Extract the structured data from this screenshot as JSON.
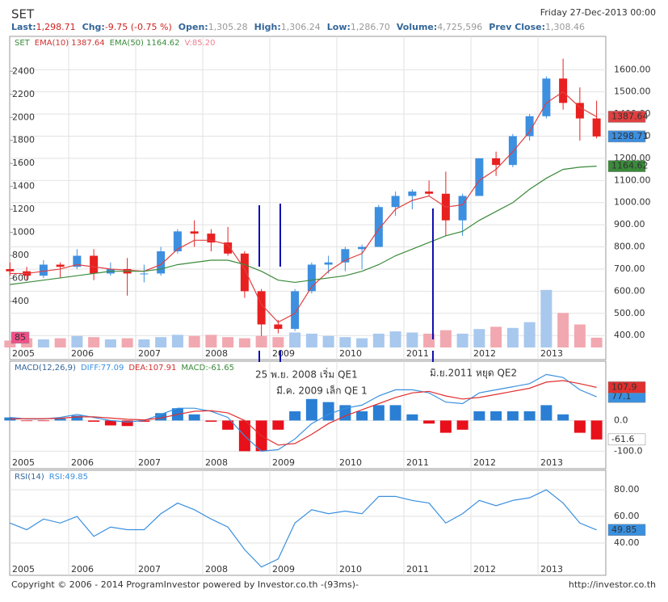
{
  "header": {
    "symbol": "SET",
    "date": "Friday 27-Dec-2013 00:00",
    "quote": [
      {
        "label": "Last:",
        "value": "1,298.71",
        "color": "#d02020"
      },
      {
        "label": "Chg:",
        "value": "-9.75 (-0.75 %)",
        "color": "#d02020"
      },
      {
        "label": "Open:",
        "value": "1,305.28",
        "color": "#999999"
      },
      {
        "label": "High:",
        "value": "1,306.24",
        "color": "#999999"
      },
      {
        "label": "Low:",
        "value": "1,286.70",
        "color": "#999999"
      },
      {
        "label": "Volume:",
        "value": "4,725,596",
        "color": "#999999"
      },
      {
        "label": "Prev Close:",
        "value": "1,308.46",
        "color": "#999999"
      }
    ]
  },
  "footer": {
    "left": "Copyright © 2006 - 2014 ProgramInvestor powered by Investor.co.th -(93ms)-",
    "right": "http://investor.co.th"
  },
  "chart_data": [
    {
      "type": "candlestick",
      "legend": [
        {
          "text": "SET",
          "color": "#3a8a3a"
        },
        {
          "text": "EMA(10) 1387.64",
          "color": "#d03030"
        },
        {
          "text": "EMA(50) 1164.62",
          "color": "#3a8a3a"
        },
        {
          "text": "V:85.20",
          "color": "#f08090"
        }
      ],
      "annotations": [
        "25 พ.ย. 2008 เริ่ม QE1",
        "มี.ค. 2009 เล็ก QE 1",
        "มิ.ย.2011 หยุด QE2"
      ],
      "categories": [
        "2005",
        null,
        null,
        null,
        "2006",
        null,
        null,
        null,
        "2007",
        null,
        null,
        null,
        "2008",
        null,
        null,
        null,
        "2009",
        null,
        null,
        null,
        "2010",
        null,
        null,
        null,
        "2011",
        null,
        null,
        null,
        "2012",
        null,
        null,
        null,
        "2013",
        null,
        null,
        null
      ],
      "open": [
        700,
        690,
        670,
        720,
        710,
        760,
        680,
        700,
        680,
        680,
        780,
        870,
        860,
        820,
        770,
        600,
        450,
        430,
        600,
        720,
        730,
        790,
        800,
        980,
        1030,
        1050,
        1040,
        920,
        1030,
        1200,
        1170,
        1300,
        1390,
        1560,
        1450,
        1380
      ],
      "high": [
        730,
        710,
        740,
        730,
        790,
        790,
        730,
        750,
        720,
        800,
        880,
        920,
        880,
        890,
        780,
        610,
        470,
        610,
        730,
        760,
        800,
        810,
        990,
        1050,
        1060,
        1100,
        1140,
        1040,
        1200,
        1230,
        1310,
        1400,
        1570,
        1650,
        1520,
        1460
      ],
      "low": [
        670,
        650,
        660,
        660,
        700,
        650,
        670,
        580,
        640,
        670,
        770,
        800,
        780,
        760,
        570,
        380,
        410,
        420,
        590,
        680,
        690,
        700,
        800,
        940,
        970,
        1030,
        850,
        850,
        1030,
        1120,
        1160,
        1280,
        1380,
        1420,
        1280,
        1290
      ],
      "close": [
        690,
        670,
        720,
        710,
        760,
        680,
        700,
        680,
        680,
        780,
        870,
        860,
        820,
        770,
        600,
        450,
        430,
        600,
        720,
        730,
        790,
        800,
        980,
        1030,
        1050,
        1040,
        920,
        1030,
        1200,
        1170,
        1300,
        1390,
        1560,
        1450,
        1380,
        1298.71
      ],
      "up_color": "#3d8fe0",
      "down_color": "#e82020",
      "close_box": "#3d8fe0",
      "series": [
        {
          "type": "bar",
          "axis": "y2",
          "up_color": "#a8c8ee",
          "down_color": "#f2a8b0",
          "color": "#f0508a",
          "last_box": true,
          "values": [
            60,
            80,
            70,
            80,
            100,
            90,
            70,
            80,
            70,
            90,
            110,
            100,
            110,
            90,
            80,
            100,
            90,
            130,
            120,
            100,
            90,
            80,
            120,
            140,
            130,
            120,
            150,
            120,
            160,
            180,
            170,
            220,
            500,
            300,
            200,
            85.2
          ],
          "value_labels": [
            null,
            null,
            null,
            null,
            null,
            null,
            null,
            null,
            null,
            null,
            null,
            null,
            null,
            null,
            null,
            null,
            null,
            null,
            null,
            null,
            null,
            null,
            null,
            null,
            null,
            null,
            null,
            null,
            null,
            null,
            null,
            null,
            null,
            null,
            null,
            "85"
          ]
        },
        {
          "type": "line",
          "color": "#e04040",
          "last_box": true,
          "values": [
            680,
            680,
            690,
            700,
            720,
            710,
            700,
            695,
            690,
            720,
            790,
            830,
            830,
            810,
            700,
            540,
            460,
            500,
            620,
            690,
            740,
            770,
            880,
            970,
            1010,
            1030,
            980,
            990,
            1100,
            1150,
            1230,
            1320,
            1450,
            1500,
            1430,
            1387.64
          ]
        },
        {
          "type": "line",
          "color": "#3a8a3a",
          "last_box": true,
          "values": [
            630,
            640,
            650,
            660,
            670,
            680,
            690,
            690,
            690,
            700,
            720,
            730,
            740,
            740,
            720,
            690,
            650,
            640,
            650,
            660,
            670,
            690,
            720,
            760,
            790,
            820,
            850,
            870,
            920,
            960,
            1000,
            1060,
            1110,
            1150,
            1160,
            1164.62
          ]
        }
      ],
      "ylim": [
        346,
        1725
      ],
      "yticks": [
        {
          "value": 400,
          "label": "400.00"
        },
        {
          "value": 500,
          "label": "500.00"
        },
        {
          "value": 600,
          "label": "600.00"
        },
        {
          "value": 700,
          "label": "700.00"
        },
        {
          "value": 800,
          "label": "800.00"
        },
        {
          "value": 900,
          "label": "900.00"
        },
        {
          "value": 1000,
          "label": "1000.00"
        },
        {
          "value": 1100,
          "label": "1100.00"
        },
        {
          "value": 1200,
          "label": "1200.00"
        },
        {
          "value": 1300,
          "label": "1300.00"
        },
        {
          "value": 1400,
          "label": "1400.00"
        },
        {
          "value": 1500,
          "label": "1500.00"
        },
        {
          "value": 1600,
          "label": "1600.00"
        }
      ],
      "y2lim": [
        0,
        2655
      ],
      "y2ticks": [
        400,
        600,
        800,
        1000,
        1200,
        1400,
        1600,
        1800,
        2000,
        2200,
        2400
      ],
      "grid": true
    },
    {
      "type": "line",
      "legend": [
        {
          "text": "MACD(12,26,9)",
          "color": "#336699"
        },
        {
          "text": "DIFF:77.09",
          "color": "#3a90e0"
        },
        {
          "text": "DEA:107.91",
          "color": "#d03030"
        },
        {
          "text": "MACD:-61.65",
          "color": "#3a8a3a"
        }
      ],
      "categories": [
        "2005",
        null,
        null,
        null,
        "2006",
        null,
        null,
        null,
        "2007",
        null,
        null,
        null,
        "2008",
        null,
        null,
        null,
        "2009",
        null,
        null,
        null,
        "2010",
        null,
        null,
        null,
        "2011",
        null,
        null,
        null,
        "2012",
        null,
        null,
        null,
        "2013",
        null,
        null,
        null
      ],
      "series": [
        {
          "type": "bar",
          "pos_color": "#2a7fd4",
          "neg_color": "#e8101a",
          "color": "#ffffff",
          "text_color": "#000000",
          "last_box": true,
          "values": [
            10,
            -2,
            -2,
            6,
            16,
            -4,
            -16,
            -18,
            -4,
            24,
            40,
            20,
            -4,
            -30,
            -100,
            -100,
            -30,
            30,
            70,
            60,
            50,
            30,
            50,
            50,
            20,
            -10,
            -40,
            -30,
            30,
            30,
            30,
            30,
            50,
            20,
            -40,
            -61.65
          ],
          "value_labels": [
            null,
            null,
            null,
            null,
            null,
            null,
            null,
            null,
            null,
            null,
            null,
            null,
            null,
            null,
            null,
            null,
            null,
            null,
            null,
            null,
            null,
            null,
            null,
            null,
            null,
            null,
            null,
            null,
            null,
            null,
            null,
            null,
            null,
            null,
            null,
            "-61.6"
          ]
        },
        {
          "type": "line",
          "color": "#3a90e0",
          "last_box": true,
          "values": [
            10,
            5,
            5,
            10,
            20,
            10,
            0,
            -5,
            0,
            20,
            40,
            40,
            30,
            10,
            -50,
            -100,
            -95,
            -60,
            -10,
            20,
            40,
            50,
            80,
            100,
            100,
            90,
            60,
            55,
            90,
            100,
            110,
            120,
            150,
            140,
            100,
            77.09
          ],
          "value_labels": [
            null,
            null,
            null,
            null,
            null,
            null,
            null,
            null,
            null,
            null,
            null,
            null,
            null,
            null,
            null,
            null,
            null,
            null,
            null,
            null,
            null,
            null,
            null,
            null,
            null,
            null,
            null,
            null,
            null,
            null,
            null,
            null,
            null,
            null,
            null,
            "77.1"
          ]
        },
        {
          "type": "line",
          "color": "#e03030",
          "last_box": true,
          "values": [
            5,
            6,
            6,
            7,
            12,
            12,
            8,
            4,
            2,
            8,
            20,
            30,
            32,
            25,
            0,
            -50,
            -80,
            -75,
            -45,
            -10,
            15,
            35,
            55,
            75,
            90,
            95,
            80,
            70,
            75,
            85,
            95,
            105,
            125,
            130,
            120,
            107.91
          ],
          "value_labels": [
            null,
            null,
            null,
            null,
            null,
            null,
            null,
            null,
            null,
            null,
            null,
            null,
            null,
            null,
            null,
            null,
            null,
            null,
            null,
            null,
            null,
            null,
            null,
            null,
            null,
            null,
            null,
            null,
            null,
            null,
            null,
            null,
            null,
            null,
            null,
            "107.9"
          ]
        }
      ],
      "ylim": [
        -120,
        180
      ],
      "yticks": [
        {
          "value": -100,
          "label": "-100.0"
        },
        {
          "value": 0,
          "label": "0.0"
        }
      ],
      "grid": true
    },
    {
      "type": "line",
      "legend": [
        {
          "text": "RSI(14)",
          "color": "#336699"
        },
        {
          "text": "RSI:49.85",
          "color": "#3a90e0"
        }
      ],
      "categories": [
        "2005",
        null,
        null,
        null,
        "2006",
        null,
        null,
        null,
        "2007",
        null,
        null,
        null,
        "2008",
        null,
        null,
        null,
        "2009",
        null,
        null,
        null,
        "2010",
        null,
        null,
        null,
        "2011",
        null,
        null,
        null,
        "2012",
        null,
        null,
        null,
        "2013",
        null,
        null,
        null
      ],
      "series": [
        {
          "type": "line",
          "color": "#3a90e0",
          "last_box": true,
          "values": [
            55,
            50,
            58,
            55,
            60,
            45,
            52,
            50,
            50,
            62,
            70,
            65,
            58,
            52,
            35,
            22,
            28,
            55,
            65,
            62,
            64,
            62,
            75,
            75,
            72,
            70,
            55,
            62,
            72,
            68,
            72,
            74,
            80,
            70,
            55,
            49.85
          ]
        }
      ],
      "ylim": [
        23,
        91
      ],
      "yticks": [
        {
          "value": 40,
          "label": "40.00"
        },
        {
          "value": 60,
          "label": "60.00"
        },
        {
          "value": 80,
          "label": "80.00"
        }
      ],
      "grid": true
    }
  ]
}
